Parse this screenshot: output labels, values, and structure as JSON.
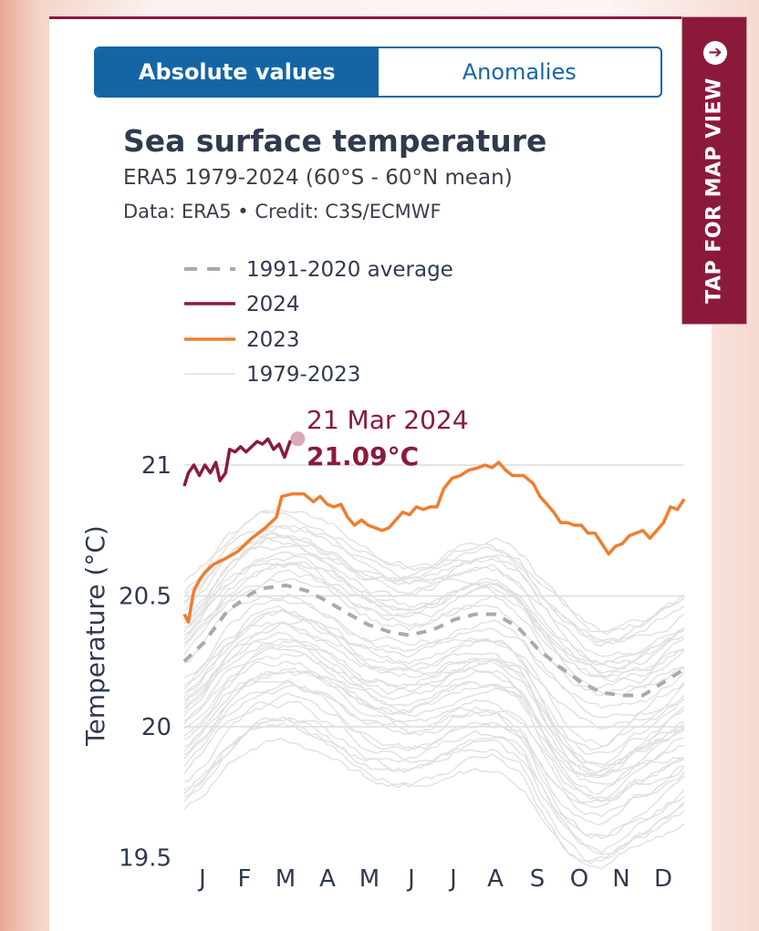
{
  "toggle": {
    "absolute_label": "Absolute values",
    "anomalies_label": "Anomalies"
  },
  "side_tab": {
    "label": "TAP FOR MAP VIEW",
    "icon": "arrow-circle-icon"
  },
  "colors": {
    "accent": "#1565a6",
    "brand": "#8b1a3a",
    "y2024": "#8b1a3a",
    "y2023": "#f07d2e",
    "average": "#aaaaaa",
    "history": "#e0e0e0"
  },
  "chart_data": {
    "type": "line",
    "title": "Sea surface temperature",
    "subtitle": "ERA5 1979-2024 (60°S - 60°N mean)",
    "credit": "Data: ERA5 • Credit: C3S/ECMWF",
    "xlabel": "",
    "ylabel": "Temperature (°C)",
    "ylim": [
      19.5,
      21.2
    ],
    "yticks": [
      19.5,
      20,
      20.5,
      21
    ],
    "ytick_labels": [
      "19.5",
      "20",
      "20.5",
      "21"
    ],
    "month_labels": [
      "J",
      "F",
      "M",
      "A",
      "M",
      "J",
      "J",
      "A",
      "S",
      "O",
      "N",
      "D"
    ],
    "x_range_days": [
      1,
      365
    ],
    "legend": [
      {
        "key": "average",
        "label": "1991-2020 average",
        "style": "dashed"
      },
      {
        "key": "y2024",
        "label": "2024",
        "style": "solid"
      },
      {
        "key": "y2023",
        "label": "2023",
        "style": "solid"
      },
      {
        "key": "history",
        "label": "1979-2023",
        "style": "thin"
      }
    ],
    "annotation": {
      "date": "21 Mar 2024",
      "value": "21.09°C",
      "day": 81,
      "temp": 21.09
    },
    "series": [
      {
        "name": "1991-2020 average",
        "key": "average",
        "x": [
          1,
          15,
          32,
          50,
          60,
          75,
          90,
          105,
          121,
          135,
          152,
          165,
          182,
          198,
          213,
          228,
          244,
          258,
          274,
          290,
          305,
          320,
          335,
          350,
          365
        ],
        "y": [
          20.25,
          20.32,
          20.44,
          20.51,
          20.53,
          20.54,
          20.52,
          20.48,
          20.43,
          20.39,
          20.36,
          20.35,
          20.37,
          20.41,
          20.43,
          20.43,
          20.38,
          20.3,
          20.23,
          20.17,
          20.13,
          20.12,
          20.12,
          20.17,
          20.22
        ]
      },
      {
        "name": "2024",
        "key": "y2024",
        "x": [
          1,
          4,
          8,
          12,
          16,
          20,
          24,
          27,
          31,
          34,
          38,
          42,
          46,
          50,
          54,
          58,
          62,
          66,
          70,
          74,
          78,
          81
        ],
        "y": [
          20.92,
          20.97,
          21.0,
          20.96,
          21.0,
          20.97,
          21.01,
          20.94,
          20.97,
          21.06,
          21.05,
          21.07,
          21.05,
          21.07,
          21.09,
          21.08,
          21.1,
          21.06,
          21.08,
          21.03,
          21.09,
          21.09
        ]
      },
      {
        "name": "2023",
        "key": "y2023",
        "x": [
          1,
          4,
          8,
          12,
          16,
          22,
          30,
          40,
          50,
          60,
          68,
          72,
          80,
          88,
          95,
          100,
          105,
          110,
          115,
          120,
          125,
          130,
          135,
          140,
          145,
          150,
          155,
          160,
          165,
          170,
          175,
          180,
          185,
          190,
          196,
          202,
          208,
          215,
          220,
          225,
          230,
          235,
          240,
          248,
          255,
          260,
          265,
          270,
          275,
          280,
          285,
          290,
          295,
          300,
          305,
          310,
          315,
          320,
          325,
          330,
          335,
          340,
          345,
          350,
          355,
          360,
          365
        ],
        "y": [
          20.43,
          20.4,
          20.52,
          20.56,
          20.59,
          20.62,
          20.64,
          20.67,
          20.72,
          20.76,
          20.8,
          20.88,
          20.89,
          20.89,
          20.86,
          20.88,
          20.85,
          20.84,
          20.85,
          20.8,
          20.77,
          20.79,
          20.77,
          20.76,
          20.75,
          20.76,
          20.79,
          20.82,
          20.81,
          20.84,
          20.83,
          20.84,
          20.84,
          20.91,
          20.95,
          20.96,
          20.98,
          20.99,
          21.0,
          20.99,
          21.01,
          20.98,
          20.96,
          20.96,
          20.93,
          20.88,
          20.85,
          20.82,
          20.78,
          20.78,
          20.77,
          20.77,
          20.74,
          20.74,
          20.7,
          20.66,
          20.69,
          20.7,
          20.73,
          20.74,
          20.75,
          20.72,
          20.75,
          20.78,
          20.84,
          20.83,
          20.87
        ]
      }
    ]
  }
}
